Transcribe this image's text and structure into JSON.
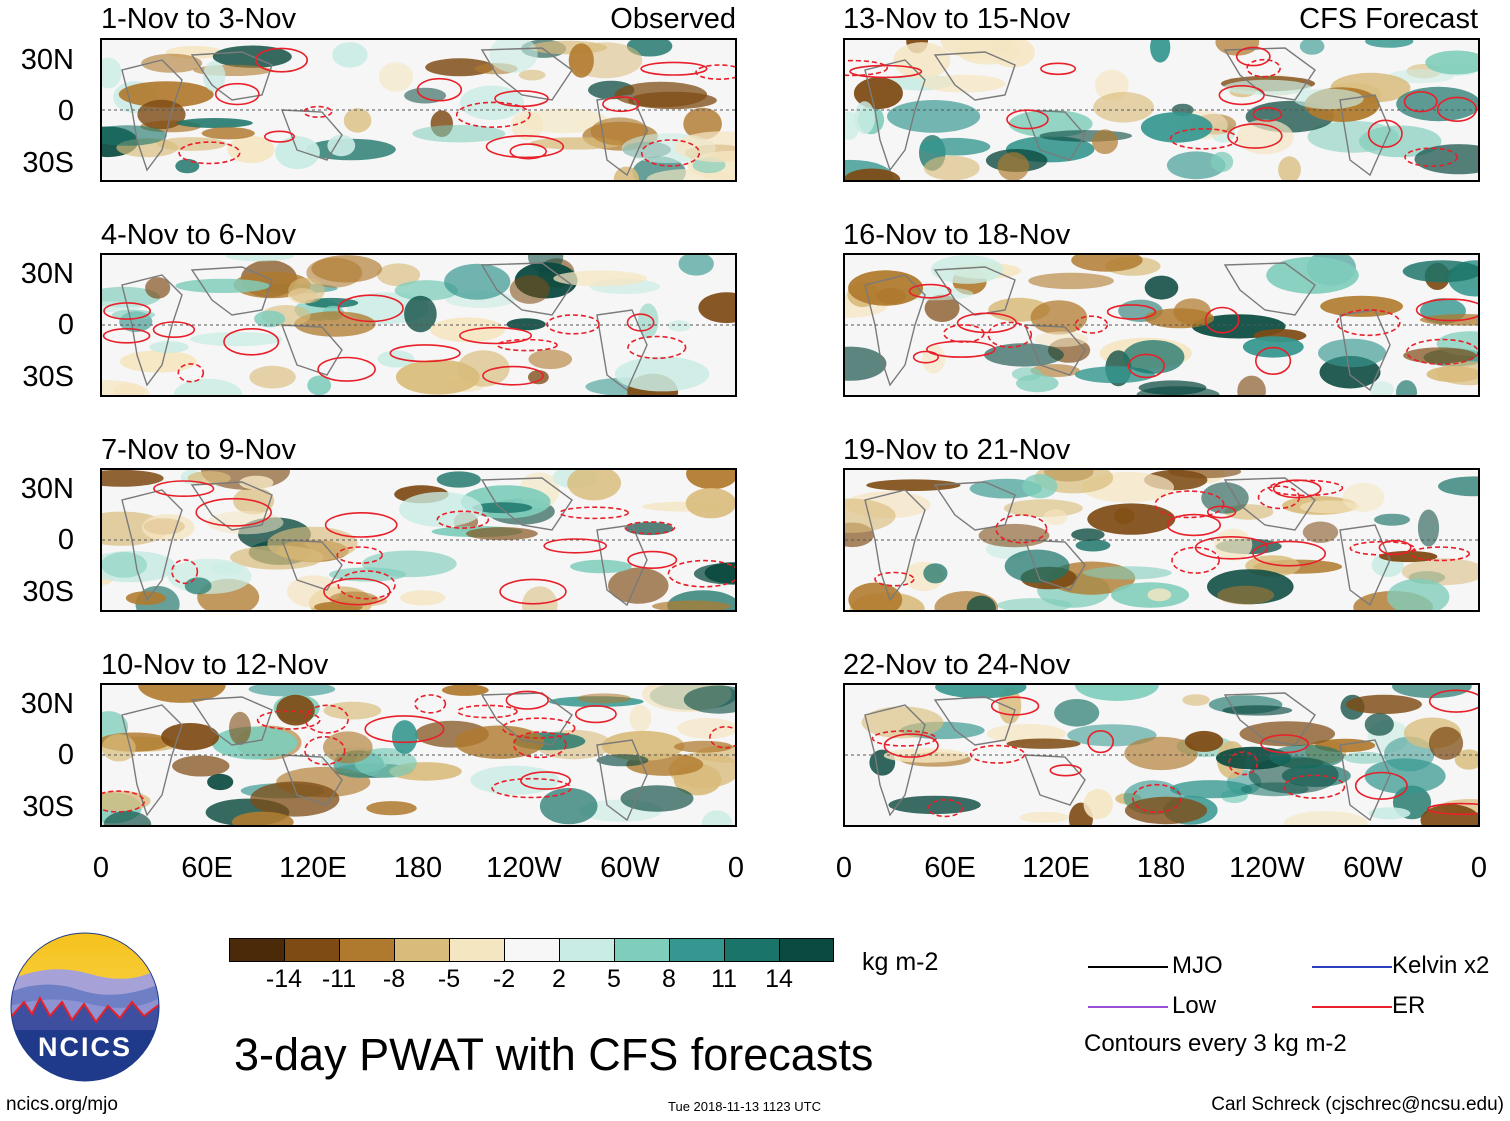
{
  "colors": {
    "er": "#e8202a",
    "mjo": "#000000",
    "low": "#9b4fd6",
    "kelvin": "#2b3fbf",
    "land": "#7a7a7a",
    "frame": "#000000"
  },
  "panels": {
    "left": [
      {
        "title": "1-Nov to 3-Nov",
        "corner": "Observed"
      },
      {
        "title": "4-Nov to 6-Nov",
        "corner": ""
      },
      {
        "title": "7-Nov to 9-Nov",
        "corner": ""
      },
      {
        "title": "10-Nov to 12-Nov",
        "corner": ""
      }
    ],
    "right": [
      {
        "title": "13-Nov to 15-Nov",
        "corner": "CFS Forecast"
      },
      {
        "title": "16-Nov to 18-Nov",
        "corner": ""
      },
      {
        "title": "19-Nov to 21-Nov",
        "corner": ""
      },
      {
        "title": "22-Nov to 24-Nov",
        "corner": ""
      }
    ]
  },
  "axes": {
    "lat_labels": [
      "30N",
      "0",
      "30S"
    ],
    "lon_labels": [
      "0",
      "60E",
      "120E",
      "180",
      "120W",
      "60W",
      "0"
    ]
  },
  "colorbar": {
    "colors": [
      "#4a2a08",
      "#7e4b14",
      "#b07a2e",
      "#d9bc7c",
      "#f5e6c2",
      "#f7f7f7",
      "#c9ece4",
      "#7fcdbb",
      "#35978f",
      "#1b7469",
      "#0b4a40"
    ],
    "ticks": [
      "-14",
      "-11",
      "-8",
      "-5",
      "-2",
      "2",
      "5",
      "8",
      "11",
      "14"
    ],
    "unit": "kg m-2"
  },
  "logo": {
    "text": "NCICS"
  },
  "title": "3-day PWAT with CFS forecasts",
  "legend": {
    "mjo": "MJO",
    "kelvin": "Kelvin x2",
    "low": "Low",
    "er": "ER",
    "note": "Contours every 3 kg m-2"
  },
  "footer": {
    "left": "ncics.org/mjo",
    "center": "Tue 2018-11-13 1123 UTC",
    "right": "Carl Schreck (cjschrec@ncsu.edu)"
  }
}
